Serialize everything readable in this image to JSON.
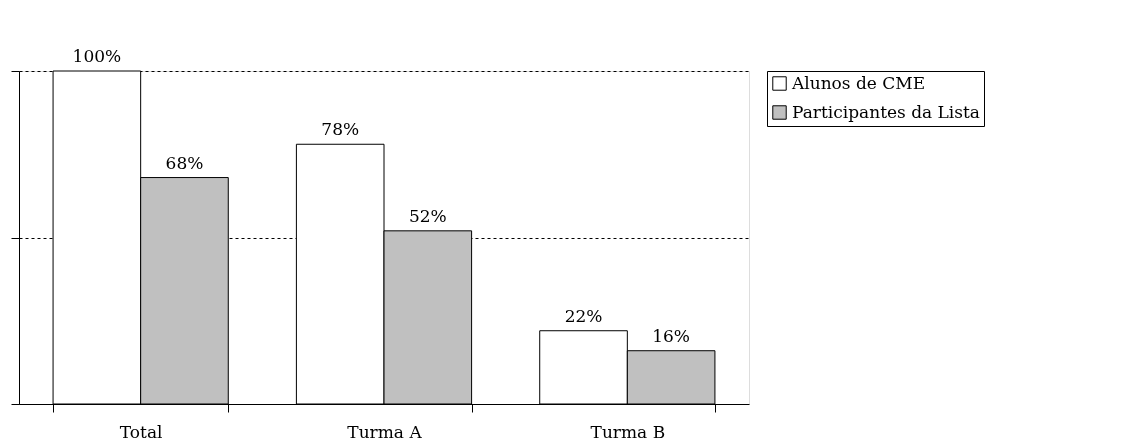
{
  "chart_data": {
    "type": "bar",
    "categories": [
      "Total",
      "Turma A",
      "Turma B"
    ],
    "series": [
      {
        "name": "Alunos de CME",
        "color": "#ffffff",
        "values": [
          100,
          78,
          22
        ],
        "value_labels": [
          "100%",
          "78%",
          "22%"
        ]
      },
      {
        "name": "Participantes da Lista",
        "color": "#c0c0c0",
        "values": [
          68,
          52,
          16
        ],
        "value_labels": [
          "68%",
          "52%",
          "16%"
        ]
      }
    ],
    "ylim": [
      0,
      100
    ],
    "yticks": [
      {
        "value": 0,
        "label": null
      },
      {
        "value": 50,
        "label": null
      },
      {
        "value": 100,
        "label": null
      }
    ],
    "tick_labels": "x",
    "grid": "y",
    "legend": "right"
  }
}
